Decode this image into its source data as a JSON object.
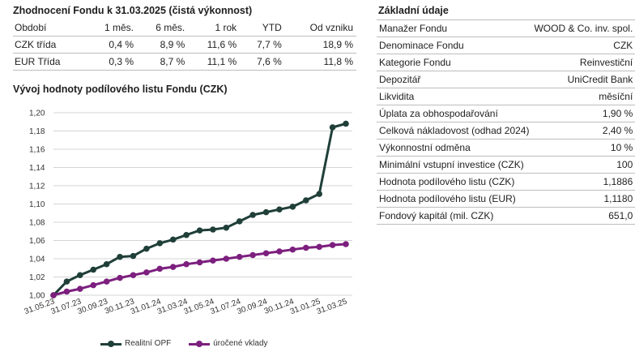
{
  "performance": {
    "title": "Zhodnocení Fondu k 31.03.2025 (čistá výkonnost)",
    "headers": [
      "Období",
      "1 měs.",
      "6 měs.",
      "1 rok",
      "YTD",
      "Od vzniku"
    ],
    "rows": [
      [
        "CZK třída",
        "0,4 %",
        "8,9 %",
        "11,6 %",
        "7,7 %",
        "18,9 %"
      ],
      [
        "EUR Třída",
        "0,3 %",
        "8,7 %",
        "11,1 %",
        "7,6 %",
        "11,8 %"
      ]
    ]
  },
  "info": {
    "title": "Základní údaje",
    "rows": [
      [
        "Manažer Fondu",
        "WOOD & Co. inv. spol."
      ],
      [
        "Denominace Fondu",
        "CZK"
      ],
      [
        "Kategorie Fondu",
        "Reinvestiční"
      ],
      [
        "Depozitář",
        "UniCredit Bank"
      ],
      [
        "Likvidita",
        "měsíční"
      ],
      [
        "Úplata za obhospodařování",
        "1,90 %"
      ],
      [
        "Celková nákladovost (odhad 2024)",
        "2,40 %"
      ],
      [
        "Výkonnostní odměna",
        "10 %"
      ],
      [
        "Minimální vstupní investice (CZK)",
        "100"
      ],
      [
        "Hodnota podílového listu (CZK)",
        "1,1886"
      ],
      [
        "Hodnota podílového listu (EUR)",
        "1,1180"
      ],
      [
        "Fondový kapitál (mil. CZK)",
        "651,0"
      ]
    ]
  },
  "chart_data": {
    "type": "line",
    "title": "Vývoj hodnoty podílového listu Fondu (CZK)",
    "xlabel": "",
    "ylabel": "",
    "ylim": [
      1.0,
      1.2
    ],
    "yticks": [
      1.0,
      1.02,
      1.04,
      1.06,
      1.08,
      1.1,
      1.12,
      1.14,
      1.16,
      1.18,
      1.2
    ],
    "ytick_labels": [
      "1,00",
      "1,02",
      "1,04",
      "1,06",
      "1,08",
      "1,10",
      "1,12",
      "1,14",
      "1,16",
      "1,18",
      "1,20"
    ],
    "x_tick_labels": [
      "31.05.23",
      "31.07.23",
      "30.09.23",
      "30.11.23",
      "31.01.24",
      "31.03.24",
      "31.05.24",
      "31.07.24",
      "30.09.24",
      "30.11.24",
      "31.01.25",
      "31.03.25"
    ],
    "x_count": 23,
    "series": [
      {
        "name": "Realitní OPF",
        "color": "#1f3f38",
        "values": [
          1.0,
          1.015,
          1.022,
          1.028,
          1.034,
          1.042,
          1.043,
          1.051,
          1.057,
          1.061,
          1.066,
          1.071,
          1.072,
          1.074,
          1.081,
          1.088,
          1.091,
          1.094,
          1.097,
          1.104,
          1.111,
          1.184,
          1.188
        ]
      },
      {
        "name": "úročené vklady",
        "color": "#7c1f7e",
        "values": [
          1.0,
          1.004,
          1.007,
          1.011,
          1.015,
          1.019,
          1.022,
          1.025,
          1.029,
          1.031,
          1.034,
          1.036,
          1.038,
          1.04,
          1.042,
          1.044,
          1.046,
          1.048,
          1.05,
          1.052,
          1.053,
          1.055,
          1.056
        ]
      }
    ],
    "grid": true,
    "legend": "bottom"
  }
}
